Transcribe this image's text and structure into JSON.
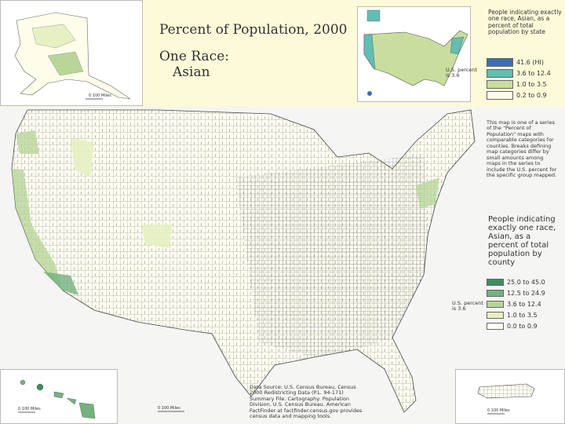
{
  "title": "Percent of Population, 2000",
  "subtitle": [
    "One Race:",
    "Asian"
  ],
  "state_legend": {
    "title": "People indicating exactly one race, Asian, as a percent of total population by state",
    "us_percent": "U.S. percent is 3.6",
    "items": [
      {
        "label": "41.6 (HI)",
        "color": "#3a6fb5"
      },
      {
        "label": "3.6 to 12.4",
        "color": "#62bdb3"
      },
      {
        "label": "1.0 to 3.5",
        "color": "#c9de9e"
      },
      {
        "label": "0.2 to 0.9",
        "color": "#fdfdea"
      }
    ]
  },
  "note": "This map is one of a series of the \"Percent of Population\" maps with comparable categories for counties. Breaks defining map categories differ by small amounts among maps in the series to include the U.S. percent for the specific group mapped.",
  "county_legend": {
    "title": "People indicating exactly one race, Asian, as a percent of total population by county",
    "us_percent": "U.S. percent is 3.6",
    "items": [
      {
        "label": "25.0 to 45.0",
        "color": "#3f8d5c"
      },
      {
        "label": "12.5 to 24.9",
        "color": "#74b27e"
      },
      {
        "label": "3.6 to 12.4",
        "color": "#b8d698"
      },
      {
        "label": "1.0 to 3.5",
        "color": "#e7f0c2"
      },
      {
        "label": "0.0 to 0.9",
        "color": "#fffff2"
      }
    ]
  },
  "source": "Data Source: U.S. Census Bureau, Census 2000 Redistricting Data (P.L. 94-171) Summary File. Cartography: Population Division, U.S. Census Bureau. American FactFinder at factfinder.census.gov provides census data and mapping tools.",
  "scale_labels": [
    "0   100 Miles",
    "0   100 Miles",
    "0   100 Miles",
    "0   100 Miles"
  ]
}
